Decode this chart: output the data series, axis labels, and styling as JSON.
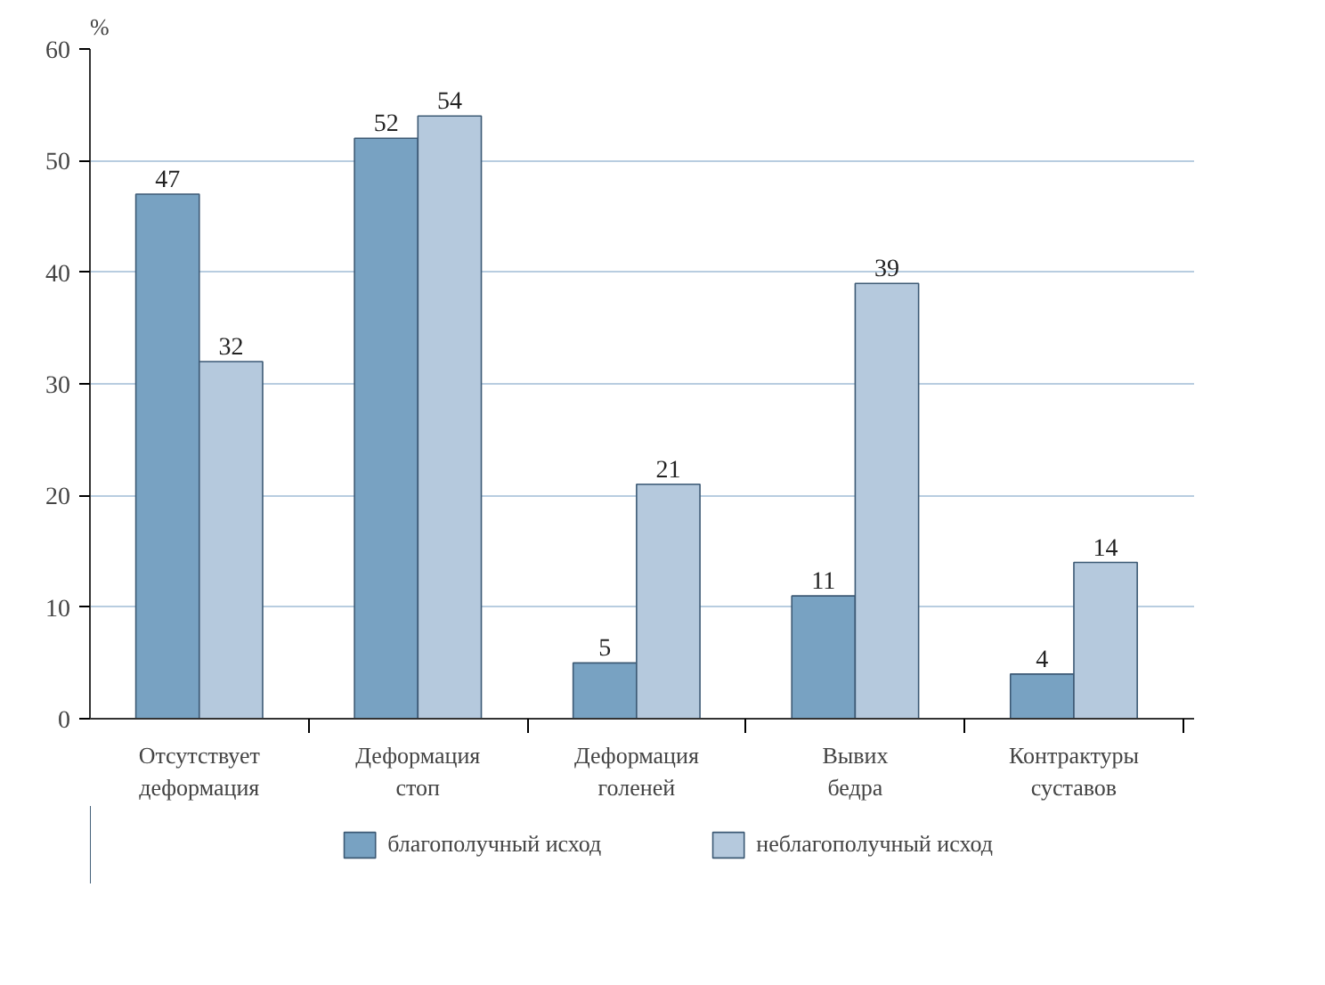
{
  "chart_data": {
    "type": "bar",
    "ylabel": "%",
    "categories": [
      "Отсутствует\nдеформация",
      "Деформация\nстоп",
      "Деформация\nголеней",
      "Вывих\nбедра",
      "Контрактуры\nсуставов"
    ],
    "series": [
      {
        "name": "благополучный исход",
        "color": "#78a2c2",
        "values": [
          47,
          52,
          5,
          11,
          4
        ]
      },
      {
        "name": "неблагополучный исход",
        "color": "#b5c9dd",
        "values": [
          32,
          54,
          21,
          39,
          14
        ]
      }
    ],
    "ylim": [
      0,
      60
    ],
    "yticks": [
      0,
      10,
      20,
      30,
      40,
      50,
      60
    ],
    "grid": "y",
    "legend": "bottom",
    "data_labels": true
  }
}
